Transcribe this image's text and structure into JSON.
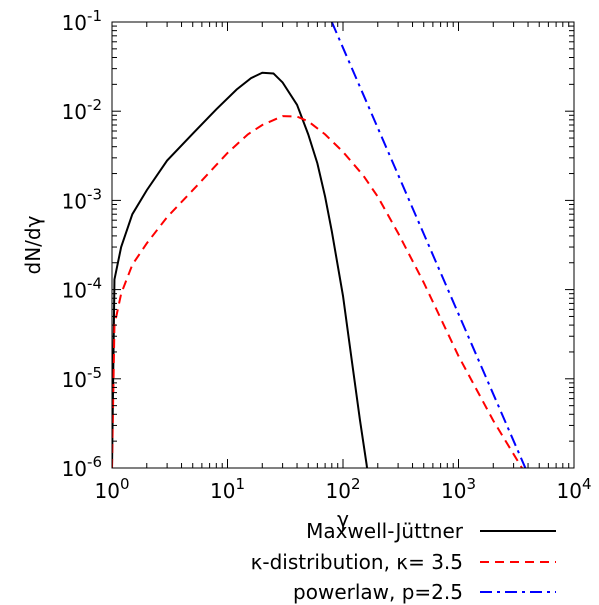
{
  "chart_data": {
    "type": "line",
    "xlabel": "γ",
    "ylabel": "dN/dγ",
    "xscale": "log",
    "yscale": "log",
    "xlim": [
      1,
      10000
    ],
    "ylim": [
      1e-06,
      0.1
    ],
    "grid": false,
    "legend_position": "bottom-right, below plot",
    "x_ticks": [
      {
        "value": 1,
        "base": "10",
        "exp": "0"
      },
      {
        "value": 10,
        "base": "10",
        "exp": "1"
      },
      {
        "value": 100,
        "base": "10",
        "exp": "2"
      },
      {
        "value": 1000,
        "base": "10",
        "exp": "3"
      },
      {
        "value": 10000,
        "base": "10",
        "exp": "4"
      }
    ],
    "y_ticks": [
      {
        "value": 0.1,
        "base": "10",
        "exp": "-1"
      },
      {
        "value": 0.01,
        "base": "10",
        "exp": "-2"
      },
      {
        "value": 0.001,
        "base": "10",
        "exp": "-3"
      },
      {
        "value": 0.0001,
        "base": "10",
        "exp": "-4"
      },
      {
        "value": 1e-05,
        "base": "10",
        "exp": "-5"
      },
      {
        "value": 1e-06,
        "base": "10",
        "exp": "-6"
      }
    ],
    "series": [
      {
        "name": "Maxwell-Jüttner",
        "color": "#000000",
        "style": "solid",
        "x": [
          1.0,
          1.05,
          1.2,
          1.5,
          2,
          3,
          5,
          8,
          12,
          16,
          20,
          25,
          30,
          40,
          50,
          60,
          70,
          80,
          100,
          120,
          140,
          160,
          170
        ],
        "y": [
          1e-06,
          0.00013,
          0.0003,
          0.0007,
          0.0013,
          0.0028,
          0.0056,
          0.0105,
          0.0175,
          0.0235,
          0.027,
          0.0265,
          0.021,
          0.0118,
          0.0055,
          0.0026,
          0.0011,
          0.00045,
          8.5e-05,
          1.5e-05,
          3.5e-06,
          1.1e-06,
          6e-07
        ]
      },
      {
        "name": "κ-distribution, κ= 3.5",
        "color": "#ff0000",
        "style": "dashed",
        "x": [
          1.0,
          1.05,
          1.2,
          1.5,
          2,
          3,
          5,
          10,
          15,
          20,
          30,
          40,
          50,
          70,
          100,
          150,
          200,
          300,
          500,
          1000,
          2000,
          4500
        ],
        "y": [
          1e-06,
          4e-05,
          9e-05,
          0.00019,
          0.00033,
          0.00065,
          0.0013,
          0.0034,
          0.0055,
          0.007,
          0.0088,
          0.0087,
          0.0077,
          0.0055,
          0.0035,
          0.0019,
          0.0011,
          0.00043,
          0.00012,
          1.8e-05,
          3.4e-06,
          6e-07
        ]
      },
      {
        "name": "powerlaw, p=2.5",
        "color": "#0000ff",
        "style": "dashdot",
        "x": [
          80,
          4500
        ],
        "y": [
          0.1,
          6e-07
        ]
      }
    ]
  }
}
